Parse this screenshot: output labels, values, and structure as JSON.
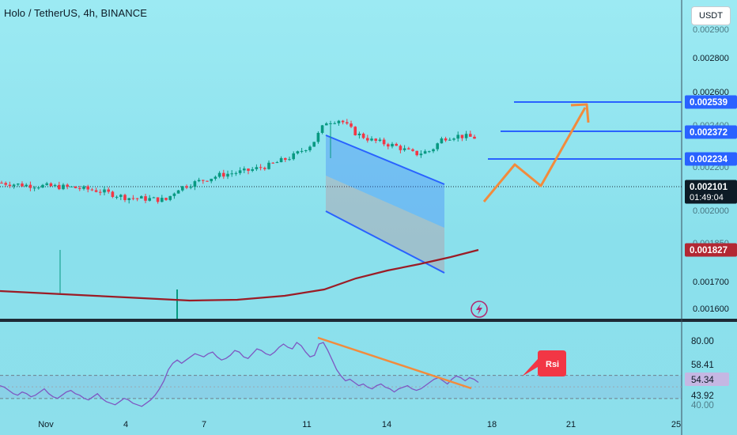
{
  "header": {
    "title": "Holo / TetherUS, 4h, BINANCE",
    "currency_button": "USDT"
  },
  "colors": {
    "up": "#089981",
    "down": "#f23645",
    "ma": "#9b1c26",
    "line_blue": "#2962ff",
    "arrow_orange": "#f28b3c",
    "rsi": "#7e57c2"
  },
  "chart_data": [
    {
      "type": "candlestick",
      "title": "Holo / TetherUS, 4h, BINANCE",
      "ylim": [
        0.00155,
        0.0029
      ],
      "y_ticks": [
        "0.002800",
        "0.002600",
        "0.001700",
        "0.001600"
      ],
      "y_ticks_partially_hidden": [
        "0.002900",
        "0.002400",
        "0.002200",
        "0.002000",
        "0.001850"
      ],
      "x_ticks": [
        "Nov",
        "4",
        "7",
        "11",
        "14",
        "18",
        "21",
        "25"
      ],
      "price_labels": [
        {
          "value": "0.002539",
          "color": "#2962ff"
        },
        {
          "value": "0.002372",
          "color": "#2962ff"
        },
        {
          "value": "0.002234",
          "color": "#2962ff"
        },
        {
          "value": "0.002101",
          "color": "#0d1b26",
          "countdown": "01:49:04"
        },
        {
          "value": "0.001827",
          "color": "#b22833"
        }
      ],
      "horizontal_lines": [
        0.002539,
        0.002372,
        0.002234
      ],
      "moving_average_last": 0.001827,
      "channel": {
        "upper": [
          [
            0.00232,
            0.00208
          ]
        ],
        "lower": [
          [
            0.00201,
            0.00173
          ]
        ]
      },
      "projection_path": [
        0.002,
        0.00221,
        0.00211,
        0.00251
      ],
      "approx_close_last": 0.002101
    },
    {
      "type": "line",
      "name": "RSI",
      "ylim": [
        40,
        85
      ],
      "y_ticks": [
        "80.00",
        "58.41",
        "54.34",
        "43.92",
        "40.00"
      ],
      "labels": {
        "rsi_value": "54.34",
        "upper_band": "58.41",
        "lower_band": "43.92"
      },
      "annotation": "Rsi"
    }
  ]
}
